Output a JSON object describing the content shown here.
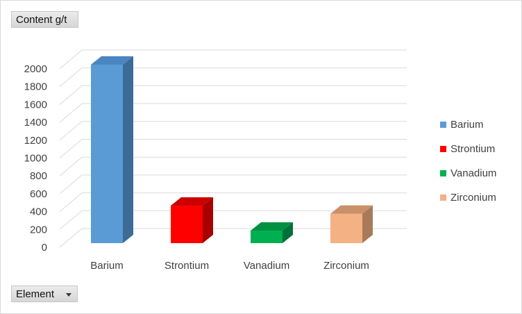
{
  "pivot": {
    "value_field_label": "Content g/t",
    "axis_field_label": "Element",
    "axis_dropdown_icon": "chevron-down-icon"
  },
  "chart_data": {
    "type": "bar",
    "categories": [
      "Barium",
      "Strontium",
      "Vanadium",
      "Zirconium"
    ],
    "values": [
      2000,
      420,
      140,
      330
    ],
    "colors": [
      "#5b9bd5",
      "#ff0000",
      "#00b050",
      "#f4b183"
    ],
    "side_colors": [
      "#3d6b97",
      "#a80000",
      "#00703a",
      "#a87a58"
    ],
    "top_colors": [
      "#4a86c0",
      "#cc0000",
      "#009040",
      "#c9906a"
    ],
    "y_ticks": [
      "0",
      "200",
      "400",
      "600",
      "800",
      "1000",
      "1200",
      "1400",
      "1600",
      "1800",
      "2000"
    ],
    "ylim": [
      0,
      2000
    ],
    "grid": true,
    "three_d": true,
    "legend_position": "right",
    "legend": [
      "Barium",
      "Strontium",
      "Vanadium",
      "Zirconium"
    ]
  }
}
